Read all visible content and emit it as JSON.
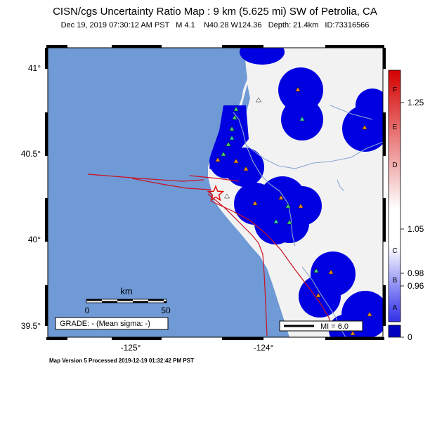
{
  "header": {
    "title": "CISN/cgs Uncertainty Ratio Map : 9 km (5.625 mi) SW of Petrolia, CA",
    "subtitle": "Dec 19, 2019 07:30:12 AM PST   M 4.1    N40.28 W124.36   Depth: 21.4km   ID:73316566"
  },
  "map": {
    "lat_ticks": [
      "41°",
      "40.5°",
      "40°",
      "39.5°"
    ],
    "lon_ticks": [
      "-125°",
      "-124°"
    ],
    "scale_bar": {
      "unit": "km",
      "start": "0",
      "end": "50"
    },
    "grade_label": "GRADE: - (Mean sigma: -)",
    "mi_label": "MI = 6.0",
    "colors": {
      "ocean": "#6f9ad6",
      "land": "#f2f2f2",
      "uncertainty": "#0000e0",
      "fault": "#cc1122",
      "river": "#7a99c8"
    }
  },
  "legend": {
    "left_labels": [
      "F",
      "E",
      "D",
      "C",
      "B",
      "A"
    ],
    "right_labels": [
      "1.25",
      "1.05",
      "0.98",
      "0.96",
      "0"
    ],
    "colors": {
      "top": "#d40000",
      "mid": "#ffffff",
      "bottom": "#0000c0"
    }
  },
  "footer": {
    "version": "Map Version 5 Processed 2019-12-19 01:32:42 PM PST"
  }
}
